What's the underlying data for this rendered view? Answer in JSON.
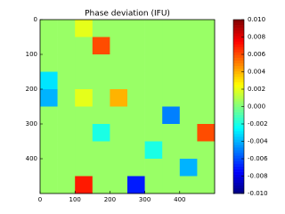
{
  "chart_data": {
    "type": "heatmap",
    "title": "Phase deviation (IFU)",
    "xlim": [
      0,
      500
    ],
    "ylim": [
      500,
      0
    ],
    "xticks": [
      0,
      100,
      200,
      300,
      400
    ],
    "yticks": [
      0,
      100,
      200,
      300,
      400
    ],
    "colormap": "jet",
    "clim": [
      -0.01,
      0.01
    ],
    "cticks": [
      {
        "value": 0.01,
        "label": "0.010"
      },
      {
        "value": 0.008,
        "label": "0.008"
      },
      {
        "value": 0.006,
        "label": "0.006"
      },
      {
        "value": 0.004,
        "label": "0.004"
      },
      {
        "value": 0.002,
        "label": "0.002"
      },
      {
        "value": 0,
        "label": "0.000"
      },
      {
        "value": -0.002,
        "label": "-0.002"
      },
      {
        "value": -0.004,
        "label": "-0.004"
      },
      {
        "value": -0.006,
        "label": "-0.006"
      },
      {
        "value": -0.008,
        "label": "-0.008"
      },
      {
        "value": -0.01,
        "label": "-0.010"
      }
    ],
    "z": [
      [
        0.0005,
        0.0005,
        0.002,
        0.0005,
        0.0005,
        0.0005,
        0.0005,
        0.0005,
        0.0005,
        0.0005
      ],
      [
        0.0005,
        0.0005,
        0.0005,
        0.006,
        0.0005,
        0.0005,
        0.0005,
        0.0005,
        0.0005,
        0.0005
      ],
      [
        0.0005,
        0.0005,
        0.0005,
        0.0005,
        0.0005,
        0.0005,
        0.0005,
        0.0005,
        0.0005,
        0.0005
      ],
      [
        -0.003,
        0.0005,
        0.0005,
        0.0005,
        0.0005,
        0.0005,
        0.0005,
        0.0005,
        0.0005,
        0.0005
      ],
      [
        -0.004,
        0.0005,
        0.002,
        0.0005,
        0.004,
        0.0005,
        0.0005,
        0.0005,
        0.0005,
        0.0005
      ],
      [
        0.0005,
        0.0005,
        0.0005,
        0.0005,
        0.0005,
        0.0005,
        0.0005,
        -0.005,
        0.0005,
        0.0005
      ],
      [
        0.0005,
        0.0005,
        0.0005,
        -0.002,
        0.0005,
        0.0005,
        0.0005,
        0.0005,
        0.0005,
        0.006
      ],
      [
        0.0005,
        0.0005,
        0.0005,
        0.0005,
        0.0005,
        0.0005,
        -0.002,
        0.0005,
        0.0005,
        0.0005
      ],
      [
        0.0005,
        0.0005,
        0.0005,
        0.0005,
        0.0005,
        0.0005,
        0.0005,
        0.0005,
        -0.004,
        0.0005
      ],
      [
        0.0005,
        0.0005,
        0.007,
        0.0005,
        0.0005,
        -0.007,
        0.0005,
        0.0005,
        0.0005,
        0.0005
      ]
    ]
  }
}
